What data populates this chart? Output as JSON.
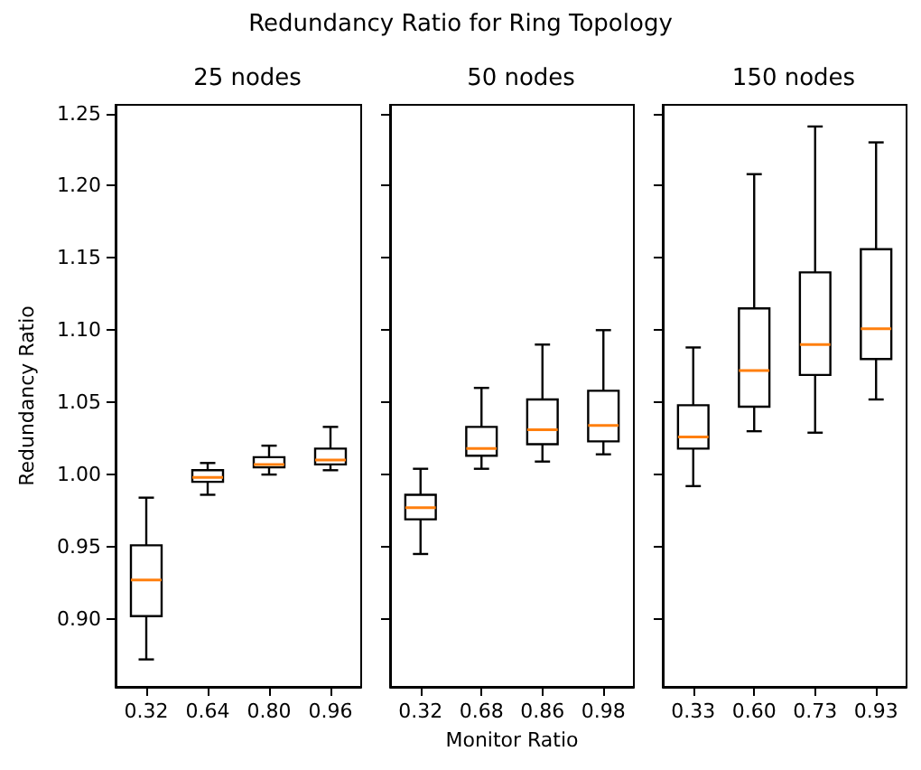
{
  "chart_data": [
    {
      "type": "box",
      "title": "25 nodes",
      "annotations": [
        "Redundancy Ratio for Ring Topology"
      ],
      "ylabel": "Redundancy Ratio",
      "categories": [
        "0.32",
        "0.64",
        "0.80",
        "0.96"
      ],
      "ylim": [
        0.853,
        1.256
      ],
      "yticks": [
        {
          "value": 0.9,
          "label": "0.90"
        },
        {
          "value": 0.95,
          "label": "0.95"
        },
        {
          "value": 1.0,
          "label": "1.00"
        },
        {
          "value": 1.05,
          "label": "1.05"
        },
        {
          "value": 1.1,
          "label": "1.10"
        },
        {
          "value": 1.15,
          "label": "1.15"
        },
        {
          "value": 1.2,
          "label": "1.20"
        },
        {
          "value": 1.25,
          "label": "1.25"
        }
      ],
      "series": [
        {
          "color": "#000000",
          "boxes": [
            {
              "low": 0.872,
              "q1": 0.902,
              "median": 0.927,
              "q3": 0.951,
              "high": 0.984
            },
            {
              "low": 0.986,
              "q1": 0.995,
              "median": 0.998,
              "q3": 1.003,
              "high": 1.008
            },
            {
              "low": 1.0,
              "q1": 1.005,
              "median": 1.007,
              "q3": 1.012,
              "high": 1.02
            },
            {
              "low": 1.003,
              "q1": 1.007,
              "median": 1.01,
              "q3": 1.018,
              "high": 1.033
            }
          ]
        }
      ]
    },
    {
      "type": "box",
      "title": "50 nodes",
      "xlabel": "Monitor Ratio",
      "categories": [
        "0.32",
        "0.68",
        "0.86",
        "0.98"
      ],
      "ylim": [
        0.853,
        1.256
      ],
      "yticks": [
        {
          "value": 0.9,
          "label": null
        },
        {
          "value": 0.95,
          "label": null
        },
        {
          "value": 1.0,
          "label": null
        },
        {
          "value": 1.05,
          "label": null
        },
        {
          "value": 1.1,
          "label": null
        },
        {
          "value": 1.15,
          "label": null
        },
        {
          "value": 1.2,
          "label": null
        },
        {
          "value": 1.25,
          "label": null
        }
      ],
      "tick_labels": "x",
      "series": [
        {
          "color": "#000000",
          "boxes": [
            {
              "low": 0.945,
              "q1": 0.969,
              "median": 0.977,
              "q3": 0.986,
              "high": 1.004
            },
            {
              "low": 1.004,
              "q1": 1.013,
              "median": 1.018,
              "q3": 1.033,
              "high": 1.06
            },
            {
              "low": 1.009,
              "q1": 1.021,
              "median": 1.031,
              "q3": 1.052,
              "high": 1.09
            },
            {
              "low": 1.014,
              "q1": 1.023,
              "median": 1.034,
              "q3": 1.058,
              "high": 1.1
            }
          ]
        }
      ]
    },
    {
      "type": "box",
      "title": "150 nodes",
      "categories": [
        "0.33",
        "0.60",
        "0.73",
        "0.93"
      ],
      "ylim": [
        0.853,
        1.256
      ],
      "yticks": [
        {
          "value": 0.9,
          "label": null
        },
        {
          "value": 0.95,
          "label": null
        },
        {
          "value": 1.0,
          "label": null
        },
        {
          "value": 1.05,
          "label": null
        },
        {
          "value": 1.1,
          "label": null
        },
        {
          "value": 1.15,
          "label": null
        },
        {
          "value": 1.2,
          "label": null
        },
        {
          "value": 1.25,
          "label": null
        }
      ],
      "tick_labels": "x",
      "series": [
        {
          "color": "#000000",
          "boxes": [
            {
              "low": 0.992,
              "q1": 1.018,
              "median": 1.026,
              "q3": 1.048,
              "high": 1.088
            },
            {
              "low": 1.03,
              "q1": 1.047,
              "median": 1.072,
              "q3": 1.115,
              "high": 1.208
            },
            {
              "low": 1.029,
              "q1": 1.069,
              "median": 1.09,
              "q3": 1.14,
              "high": 1.241
            },
            {
              "low": 1.052,
              "q1": 1.08,
              "median": 1.101,
              "q3": 1.156,
              "high": 1.23
            }
          ]
        }
      ]
    }
  ]
}
